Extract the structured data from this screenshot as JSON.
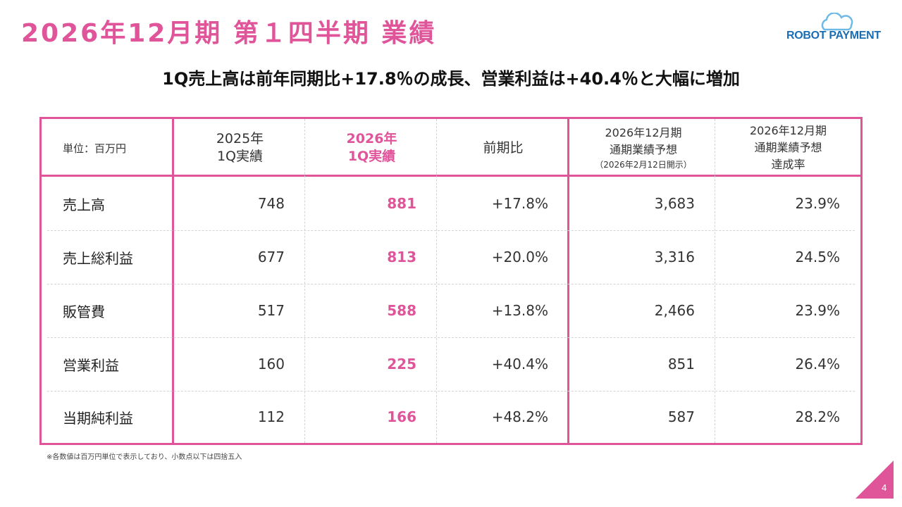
{
  "slide": {
    "title": "2026年12月期 第１四半期 業績",
    "subtitle": "1Q売上高は前年同期比+17.8％の成長、営業利益は+40.4％と大幅に増加",
    "footnote": "※各数値は百万円単位で表示しており、小数点以下は四捨五入",
    "page_number": "4"
  },
  "logo": {
    "text": "ROBOT PAYMENT",
    "color": "#1b6db3"
  },
  "colors": {
    "accent": "#e0559a",
    "grid": "#d4d4d4",
    "text": "#222222"
  },
  "table": {
    "unit_label": "単位：百万円",
    "columns": [
      {
        "line1": "2025年",
        "line2": "1Q実績"
      },
      {
        "line1": "2026年",
        "line2": "1Q実績"
      },
      {
        "line1": "前期比"
      },
      {
        "line1": "2026年12月期",
        "line2": "通期業績予想",
        "line3": "（2026年2月12日開示）"
      },
      {
        "line1": "2026年12月期",
        "line2": "通期業績予想",
        "line3": "達成率"
      }
    ],
    "rows": [
      {
        "label": "売上高",
        "prev_1q": "748",
        "curr_1q": "881",
        "yoy": "+17.8%",
        "forecast": "3,683",
        "achievement": "23.9%"
      },
      {
        "label": "売上総利益",
        "prev_1q": "677",
        "curr_1q": "813",
        "yoy": "+20.0%",
        "forecast": "3,316",
        "achievement": "24.5%"
      },
      {
        "label": "販管費",
        "prev_1q": "517",
        "curr_1q": "588",
        "yoy": "+13.8%",
        "forecast": "2,466",
        "achievement": "23.9%"
      },
      {
        "label": "営業利益",
        "prev_1q": "160",
        "curr_1q": "225",
        "yoy": "+40.4%",
        "forecast": "851",
        "achievement": "26.4%"
      },
      {
        "label": "当期純利益",
        "prev_1q": "112",
        "curr_1q": "166",
        "yoy": "+48.2%",
        "forecast": "587",
        "achievement": "28.2%"
      }
    ]
  }
}
